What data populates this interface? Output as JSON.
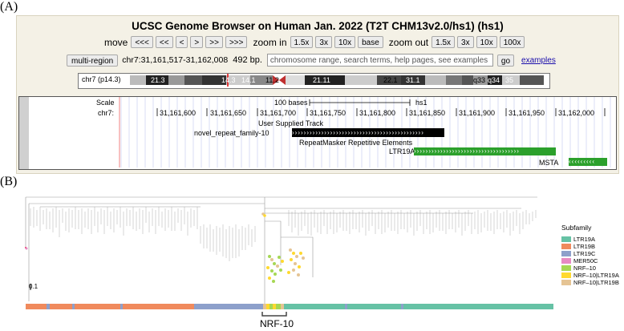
{
  "panel_a_label": "(A)",
  "panel_b_label": "(B)",
  "browser": {
    "title": "UCSC Genome Browser on Human Jan. 2022 (T2T CHM13v2.0/hs1) (hs1)",
    "move_label": "move",
    "move_buttons": [
      "<<<",
      "<<",
      "<",
      ">",
      ">>",
      ">>>"
    ],
    "zoom_in_label": "zoom in",
    "zoom_in_buttons": [
      "1.5x",
      "3x",
      "10x",
      "base"
    ],
    "zoom_out_label": "zoom out",
    "zoom_out_buttons": [
      "1.5x",
      "3x",
      "10x",
      "100x"
    ],
    "multi_region_label": "multi-region",
    "position": "chr7:31,161,517-31,162,008",
    "size": "492 bp.",
    "search_placeholder": "chromosome range, search terms, help pages, see examples",
    "go_label": "go",
    "examples_label": "examples",
    "ideogram_label": "chr7 (p14.3)",
    "ideogram_bands": [
      "21.3",
      "14.3",
      "14.1",
      "11.2",
      "21.11",
      "22.1",
      "31.1",
      "q33",
      "q34",
      "35"
    ],
    "scale_label": "Scale",
    "scale_bar_label": "100 bases",
    "assembly_label": "hs1",
    "chrom_label": "chr7:",
    "coordinates": [
      "31,161,600",
      "31,161,650",
      "31,161,700",
      "31,161,750",
      "31,161,800",
      "31,161,850",
      "31,161,900",
      "31,161,950",
      "31,162,000"
    ],
    "user_track_title": "User Supplied Track",
    "user_feature_label": "novel_repeat_family-10",
    "repeatmasker_title": "RepeatMasker Repetitive Elements",
    "rm_feature1_label": "LTR19A",
    "rm_feature2_label": "MSTA"
  },
  "tree": {
    "scale_label": "0.1",
    "highlight_label": "NRF-10",
    "legend_title": "Subfamily",
    "legend": [
      {
        "name": "LTR19A",
        "color": "#66c2a5"
      },
      {
        "name": "LTR19B",
        "color": "#f08a5d"
      },
      {
        "name": "LTR19C",
        "color": "#8da0cb"
      },
      {
        "name": "MER50C",
        "color": "#e78ac3"
      },
      {
        "name": "NRF–10",
        "color": "#a6d854"
      },
      {
        "name": "NRF–10|LTR19A",
        "color": "#ffd92f"
      },
      {
        "name": "NRF–10|LTR19B",
        "color": "#e5c494"
      }
    ]
  }
}
